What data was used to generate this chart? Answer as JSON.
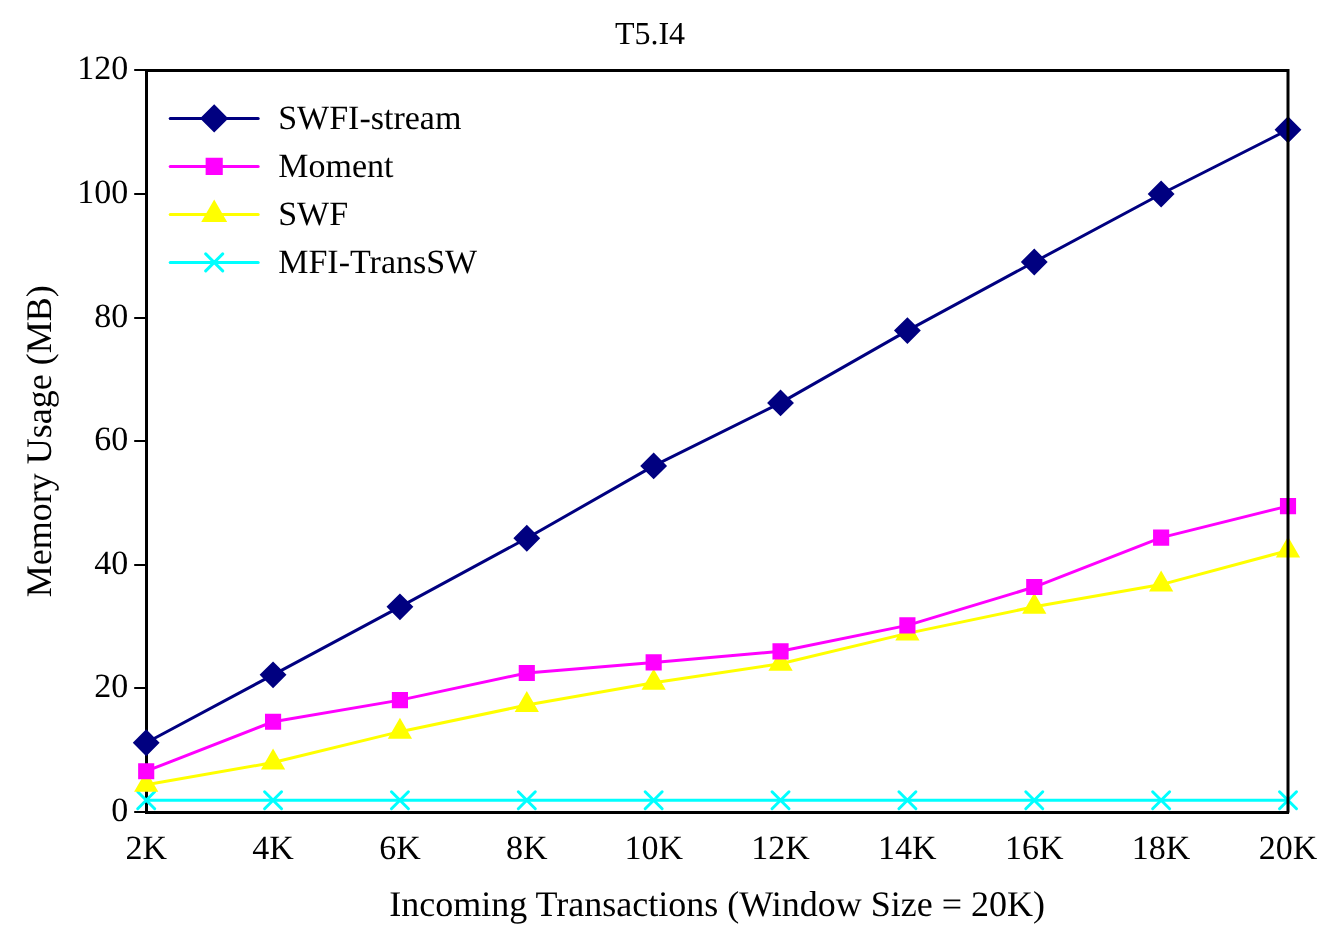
{
  "chart_data": {
    "type": "line",
    "title": "T5.I4",
    "xlabel": "Incoming Transactions (Window Size = 20K)",
    "ylabel": "Memory Usage (MB)",
    "categories": [
      "2K",
      "4K",
      "6K",
      "8K",
      "10K",
      "12K",
      "14K",
      "16K",
      "18K",
      "20K"
    ],
    "series": [
      {
        "name": "SWFI-stream",
        "color": "#000080",
        "marker": "diamond",
        "values": [
          11.2,
          22.2,
          33.2,
          44.3,
          56,
          66.2,
          77.9,
          89,
          100,
          110.4
        ]
      },
      {
        "name": "Moment",
        "color": "#ff00ff",
        "marker": "square",
        "values": [
          6.6,
          14.6,
          18.1,
          22.5,
          24.2,
          26,
          30.2,
          36.4,
          44.4,
          49.5
        ]
      },
      {
        "name": "SWF",
        "color": "#ffff00",
        "marker": "triangle",
        "values": [
          4.4,
          8,
          13,
          17.3,
          20.9,
          24,
          28.9,
          33.2,
          36.8,
          42.3
        ]
      },
      {
        "name": "MFI-TransSW",
        "color": "#00ffff",
        "marker": "cross",
        "values": [
          1.9,
          1.9,
          1.9,
          1.9,
          1.9,
          1.9,
          1.9,
          1.9,
          1.9,
          1.9
        ]
      }
    ],
    "ylim": [
      0,
      120
    ],
    "yticks": [
      0,
      20,
      40,
      60,
      80,
      100,
      120
    ],
    "grid": false,
    "legend": "top left",
    "line_style": "solid"
  }
}
